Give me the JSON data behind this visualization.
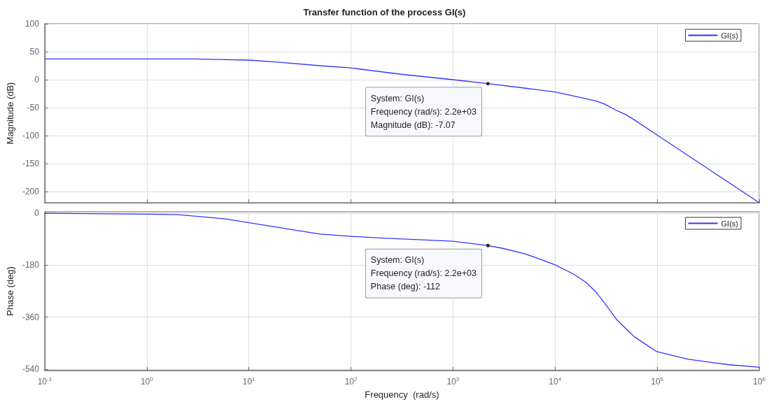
{
  "chart_data": [
    {
      "type": "line",
      "title": "Transfer function of the process GI(s)",
      "ylabel": "Magnitude (dB)",
      "x": [
        0.1,
        1,
        3,
        5,
        10,
        20,
        50,
        100,
        300,
        1000,
        2200,
        5000,
        10000,
        20000,
        25000,
        30000,
        40000,
        50000,
        60000,
        100000,
        1000000
      ],
      "series": [
        {
          "name": "GI(s)",
          "color": "#3333ff",
          "values": [
            37,
            37,
            37,
            36,
            35,
            31,
            25,
            21,
            10,
            0,
            -7,
            -15,
            -22,
            -34,
            -38,
            -43,
            -55,
            -63,
            -72,
            -99,
            -220
          ]
        }
      ],
      "log": "x",
      "xlim": [
        0.1,
        1000000
      ],
      "ylim": [
        -220,
        100
      ],
      "xticks": [
        0.1,
        1,
        10,
        100,
        1000,
        10000,
        100000,
        1000000
      ],
      "yticks": [
        -200,
        -150,
        -100,
        -50,
        0,
        50,
        100
      ],
      "tick_labels": "y",
      "grid": true,
      "legend": "top right",
      "marker": "none",
      "line_style": "solid",
      "annotations": [
        {
          "text": "System: GI(s)\nFrequency (rad/s): 2.2e+03\nMagnitude (dB): -7.07",
          "x": 2200,
          "y": -7.07
        }
      ]
    },
    {
      "type": "line",
      "xlabel": "Frequency  (rad/s)",
      "ylabel": "Phase (deg)",
      "x": [
        0.1,
        1,
        2,
        4,
        6,
        10,
        20,
        30,
        50,
        100,
        200,
        500,
        1000,
        2200,
        3000,
        5000,
        7000,
        10000,
        15000,
        20000,
        25000,
        30000,
        35000,
        40000,
        50000,
        60000,
        80000,
        100000,
        150000,
        200000,
        500000,
        1000000
      ],
      "series": [
        {
          "name": "GI(s)",
          "color": "#3333ff",
          "values": [
            0,
            -3,
            -5,
            -14,
            -20,
            -33,
            -50,
            -60,
            -72,
            -80,
            -86,
            -92,
            -97,
            -112,
            -121,
            -140,
            -158,
            -179,
            -210,
            -239,
            -272,
            -308,
            -340,
            -368,
            -402,
            -429,
            -458,
            -480,
            -495,
            -506,
            -525,
            -534
          ]
        }
      ],
      "log": "x",
      "xlim": [
        0.1,
        1000000
      ],
      "ylim": [
        -545,
        5
      ],
      "xticks": [
        {
          "value": 0.1,
          "label": "10$^{-1}$"
        },
        {
          "value": 1,
          "label": "10$^{0}$"
        },
        {
          "value": 10,
          "label": "10$^{1}$"
        },
        {
          "value": 100,
          "label": "10$^{2}$"
        },
        {
          "value": 1000,
          "label": "10$^{3}$"
        },
        {
          "value": 10000,
          "label": "10$^{4}$"
        },
        {
          "value": 100000,
          "label": "10$^{5}$"
        },
        {
          "value": 1000000,
          "label": "10$^{6}$"
        }
      ],
      "yticks": [
        -540,
        -360,
        -180,
        0
      ],
      "grid": true,
      "legend": "top right",
      "marker": "none",
      "line_style": "solid",
      "annotations": [
        {
          "text": "System: GI(s)\nFrequency (rad/s): 2.2e+03\nPhase (deg): -112",
          "x": 2200,
          "y": -112
        }
      ]
    }
  ]
}
